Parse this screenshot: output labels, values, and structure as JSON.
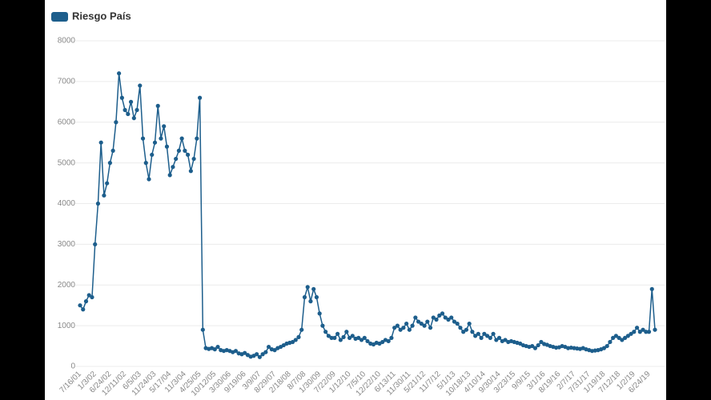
{
  "chart_data": {
    "type": "line",
    "categories": [
      "7/16/01",
      null,
      null,
      null,
      null,
      "1/3/02",
      null,
      null,
      null,
      null,
      "6/24/02",
      null,
      null,
      null,
      null,
      "12/11/02",
      null,
      null,
      null,
      null,
      "6/5/03",
      null,
      null,
      null,
      null,
      "11/24/03",
      null,
      null,
      null,
      null,
      "5/17/04",
      null,
      null,
      null,
      null,
      "11/3/04",
      null,
      null,
      null,
      null,
      "4/25/05",
      null,
      null,
      null,
      null,
      "10/12/05",
      null,
      null,
      null,
      null,
      "3/30/06",
      null,
      null,
      null,
      null,
      "9/19/06",
      null,
      null,
      null,
      null,
      "3/9/07",
      null,
      null,
      null,
      null,
      "8/29/07",
      null,
      null,
      null,
      null,
      "2/18/08",
      null,
      null,
      null,
      null,
      "8/7/08",
      null,
      null,
      null,
      null,
      "1/30/09",
      null,
      null,
      null,
      null,
      "7/22/09",
      null,
      null,
      null,
      null,
      "1/12/10",
      null,
      null,
      null,
      null,
      "7/5/10",
      null,
      null,
      null,
      null,
      "12/22/10",
      null,
      null,
      null,
      null,
      "6/13/11",
      null,
      null,
      null,
      null,
      "11/30/11",
      null,
      null,
      null,
      null,
      "5/21/12",
      null,
      null,
      null,
      null,
      "11/7/12",
      null,
      null,
      null,
      null,
      "5/1/13",
      null,
      null,
      null,
      null,
      "10/18/13",
      null,
      null,
      null,
      null,
      "4/10/14",
      null,
      null,
      null,
      null,
      "9/30/14",
      null,
      null,
      null,
      null,
      "3/23/15",
      null,
      null,
      null,
      null,
      "9/9/15",
      null,
      null,
      null,
      null,
      "3/1/16",
      null,
      null,
      null,
      null,
      "8/19/16",
      null,
      null,
      null,
      null,
      "2/7/17",
      null,
      null,
      null,
      null,
      "7/31/17",
      null,
      null,
      null,
      null,
      "1/19/18",
      null,
      null,
      null,
      null,
      "7/12/18",
      null,
      null,
      null,
      null,
      "1/2/19",
      null,
      null,
      null,
      null,
      "6/24/19",
      null,
      null
    ],
    "series": [
      {
        "name": "Riesgo País",
        "color": "#1d5e8c",
        "values": [
          1500,
          1400,
          1600,
          1750,
          1700,
          3000,
          4000,
          5500,
          4200,
          4500,
          5000,
          5300,
          6000,
          7200,
          6600,
          6300,
          6200,
          6500,
          6100,
          6300,
          6900,
          5600,
          5000,
          4600,
          5200,
          5500,
          6400,
          5600,
          5900,
          5400,
          4700,
          4900,
          5100,
          5300,
          5600,
          5300,
          5200,
          4800,
          5100,
          5600,
          6600,
          900,
          450,
          430,
          450,
          420,
          480,
          400,
          380,
          400,
          380,
          350,
          380,
          320,
          300,
          330,
          280,
          240,
          260,
          300,
          230,
          300,
          350,
          480,
          420,
          400,
          450,
          480,
          520,
          560,
          580,
          600,
          650,
          720,
          900,
          1700,
          1950,
          1600,
          1900,
          1700,
          1300,
          1000,
          850,
          750,
          700,
          700,
          800,
          650,
          720,
          850,
          700,
          750,
          680,
          700,
          650,
          700,
          620,
          560,
          540,
          580,
          560,
          600,
          650,
          620,
          700,
          950,
          1000,
          900,
          950,
          1050,
          900,
          1000,
          1200,
          1100,
          1050,
          1000,
          1100,
          950,
          1200,
          1150,
          1250,
          1300,
          1200,
          1150,
          1200,
          1100,
          1050,
          950,
          850,
          900,
          1050,
          850,
          750,
          800,
          700,
          800,
          750,
          700,
          800,
          650,
          700,
          620,
          650,
          600,
          620,
          600,
          580,
          560,
          520,
          500,
          480,
          500,
          450,
          520,
          600,
          550,
          530,
          500,
          480,
          460,
          470,
          500,
          480,
          450,
          460,
          450,
          440,
          430,
          450,
          420,
          400,
          380,
          390,
          400,
          420,
          450,
          500,
          600,
          700,
          750,
          700,
          650,
          700,
          750,
          800,
          850,
          950,
          850,
          900,
          850,
          850,
          1900,
          900
        ]
      }
    ],
    "ylim": [
      0,
      8000
    ],
    "yticks": [
      0,
      1000,
      2000,
      3000,
      4000,
      5000,
      6000,
      7000,
      8000
    ],
    "grid": true,
    "legend": "top-left"
  }
}
